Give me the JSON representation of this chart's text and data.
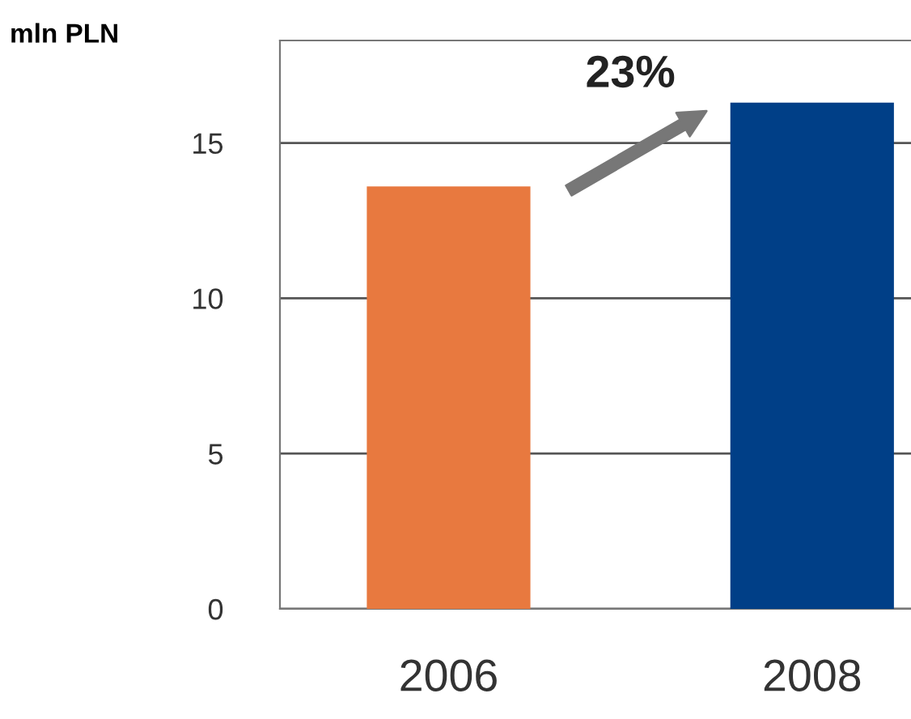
{
  "chart_data": {
    "type": "bar",
    "ylabel": "mln PLN",
    "categories": [
      "2006",
      "2008"
    ],
    "values": [
      13.6,
      16.3
    ],
    "colors": [
      "#e8793f",
      "#003f87"
    ],
    "ylim": [
      0,
      18.3
    ],
    "yticks": [
      0,
      5,
      10,
      15
    ],
    "grid": "y",
    "legend": false,
    "annotations": [
      "23%"
    ]
  }
}
